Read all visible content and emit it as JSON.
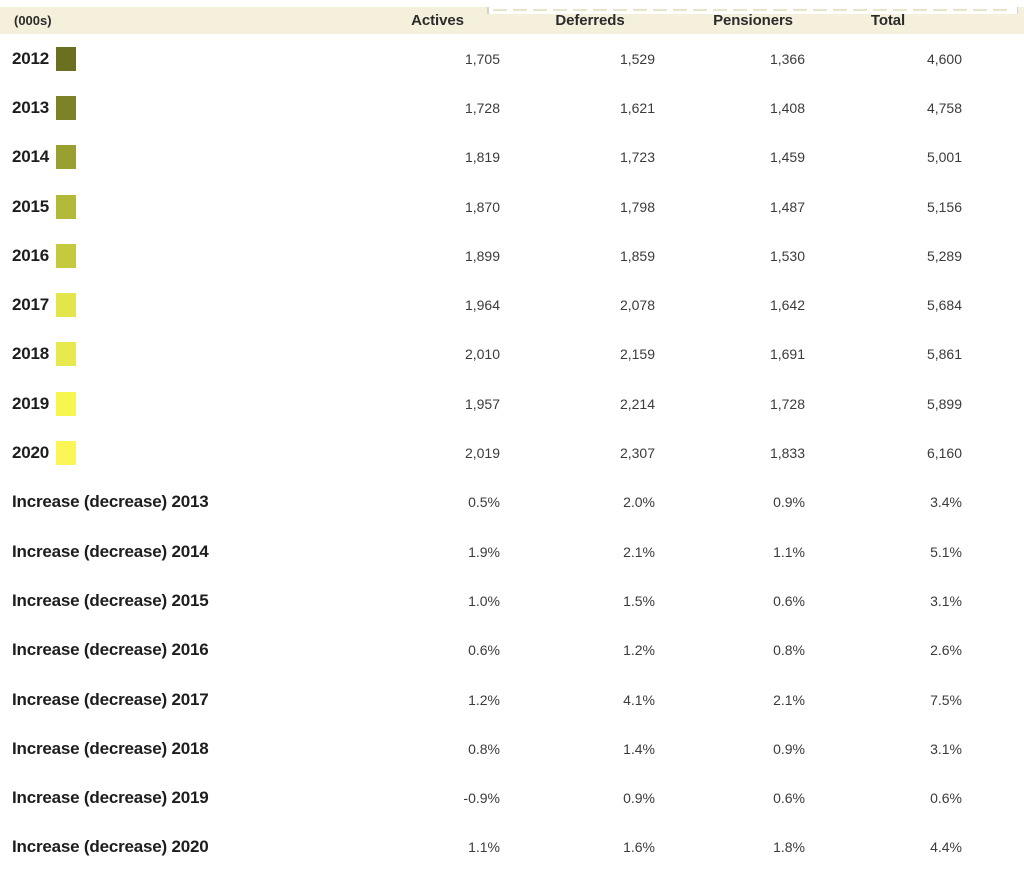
{
  "colors": {
    "header_bg": "#f4f0dc",
    "label_text": "#1d1d1d",
    "value_text": "#3b3b3b",
    "strip_border": "#d2d2d2"
  },
  "table": {
    "unit_label": "(000s)",
    "columns": [
      "Actives",
      "Deferreds",
      "Pensioners",
      "Total"
    ],
    "year_rows": [
      {
        "year": "2012",
        "swatch_color": "#6b7021",
        "values": [
          "1,705",
          "1,529",
          "1,366",
          "4,600"
        ]
      },
      {
        "year": "2013",
        "swatch_color": "#7d8228",
        "values": [
          "1,728",
          "1,621",
          "1,408",
          "4,758"
        ]
      },
      {
        "year": "2014",
        "swatch_color": "#9aa030",
        "values": [
          "1,819",
          "1,723",
          "1,459",
          "5,001"
        ]
      },
      {
        "year": "2015",
        "swatch_color": "#b2b838",
        "values": [
          "1,870",
          "1,798",
          "1,487",
          "5,156"
        ]
      },
      {
        "year": "2016",
        "swatch_color": "#c4c93e",
        "values": [
          "1,899",
          "1,859",
          "1,530",
          "5,289"
        ]
      },
      {
        "year": "2017",
        "swatch_color": "#e2e64b",
        "values": [
          "1,964",
          "2,078",
          "1,642",
          "5,684"
        ]
      },
      {
        "year": "2018",
        "swatch_color": "#e7e94e",
        "values": [
          "2,010",
          "2,159",
          "1,691",
          "5,861"
        ]
      },
      {
        "year": "2019",
        "swatch_color": "#f6f64f",
        "values": [
          "1,957",
          "2,214",
          "1,728",
          "5,899"
        ]
      },
      {
        "year": "2020",
        "swatch_color": "#f9f655",
        "values": [
          "2,019",
          "2,307",
          "1,833",
          "6,160"
        ]
      }
    ],
    "change_rows": [
      {
        "label": "Increase (decrease) 2013",
        "values": [
          "0.5%",
          "2.0%",
          "0.9%",
          "3.4%"
        ]
      },
      {
        "label": "Increase (decrease) 2014",
        "values": [
          "1.9%",
          "2.1%",
          "1.1%",
          "5.1%"
        ]
      },
      {
        "label": "Increase (decrease) 2015",
        "values": [
          "1.0%",
          "1.5%",
          "0.6%",
          "3.1%"
        ]
      },
      {
        "label": "Increase (decrease) 2016",
        "values": [
          "0.6%",
          "1.2%",
          "0.8%",
          "2.6%"
        ]
      },
      {
        "label": "Increase (decrease) 2017",
        "values": [
          "1.2%",
          "4.1%",
          "2.1%",
          "7.5%"
        ]
      },
      {
        "label": "Increase (decrease) 2018",
        "values": [
          "0.8%",
          "1.4%",
          "0.9%",
          "3.1%"
        ]
      },
      {
        "label": "Increase (decrease) 2019",
        "values": [
          "-0.9%",
          "0.9%",
          "0.6%",
          "0.6%"
        ]
      },
      {
        "label": "Increase (decrease) 2020",
        "values": [
          "1.1%",
          "1.6%",
          "1.8%",
          "4.4%"
        ]
      }
    ]
  },
  "chart_data": {
    "type": "table",
    "title": "",
    "unit": "(000s)",
    "columns": [
      "Actives",
      "Deferreds",
      "Pensioners",
      "Total"
    ],
    "years": [
      2012,
      2013,
      2014,
      2015,
      2016,
      2017,
      2018,
      2019,
      2020
    ],
    "membership": {
      "Actives": [
        1705,
        1728,
        1819,
        1870,
        1899,
        1964,
        2010,
        1957,
        2019
      ],
      "Deferreds": [
        1529,
        1621,
        1723,
        1798,
        1859,
        2078,
        2159,
        2214,
        2307
      ],
      "Pensioners": [
        1366,
        1408,
        1459,
        1487,
        1530,
        1642,
        1691,
        1728,
        1833
      ],
      "Total": [
        4600,
        4758,
        5001,
        5156,
        5289,
        5684,
        5861,
        5899,
        6160
      ]
    },
    "increase_decrease_pct": {
      "years": [
        2013,
        2014,
        2015,
        2016,
        2017,
        2018,
        2019,
        2020
      ],
      "Actives": [
        0.5,
        1.9,
        1.0,
        0.6,
        1.2,
        0.8,
        -0.9,
        1.1
      ],
      "Deferreds": [
        2.0,
        2.1,
        1.5,
        1.2,
        4.1,
        1.4,
        0.9,
        1.6
      ],
      "Pensioners": [
        0.9,
        1.1,
        0.6,
        0.8,
        2.1,
        0.9,
        0.6,
        1.8
      ],
      "Total": [
        3.4,
        5.1,
        3.1,
        2.6,
        7.5,
        3.1,
        0.6,
        4.4
      ]
    },
    "legend_colors": [
      "#6b7021",
      "#7d8228",
      "#9aa030",
      "#b2b838",
      "#c4c93e",
      "#e2e64b",
      "#e7e94e",
      "#f6f64f",
      "#f9f655"
    ],
    "layout_hints": {
      "header_background": "#f4f0dc",
      "numeric_alignment": "right",
      "legend_swatch_position": "after-year-label"
    }
  }
}
